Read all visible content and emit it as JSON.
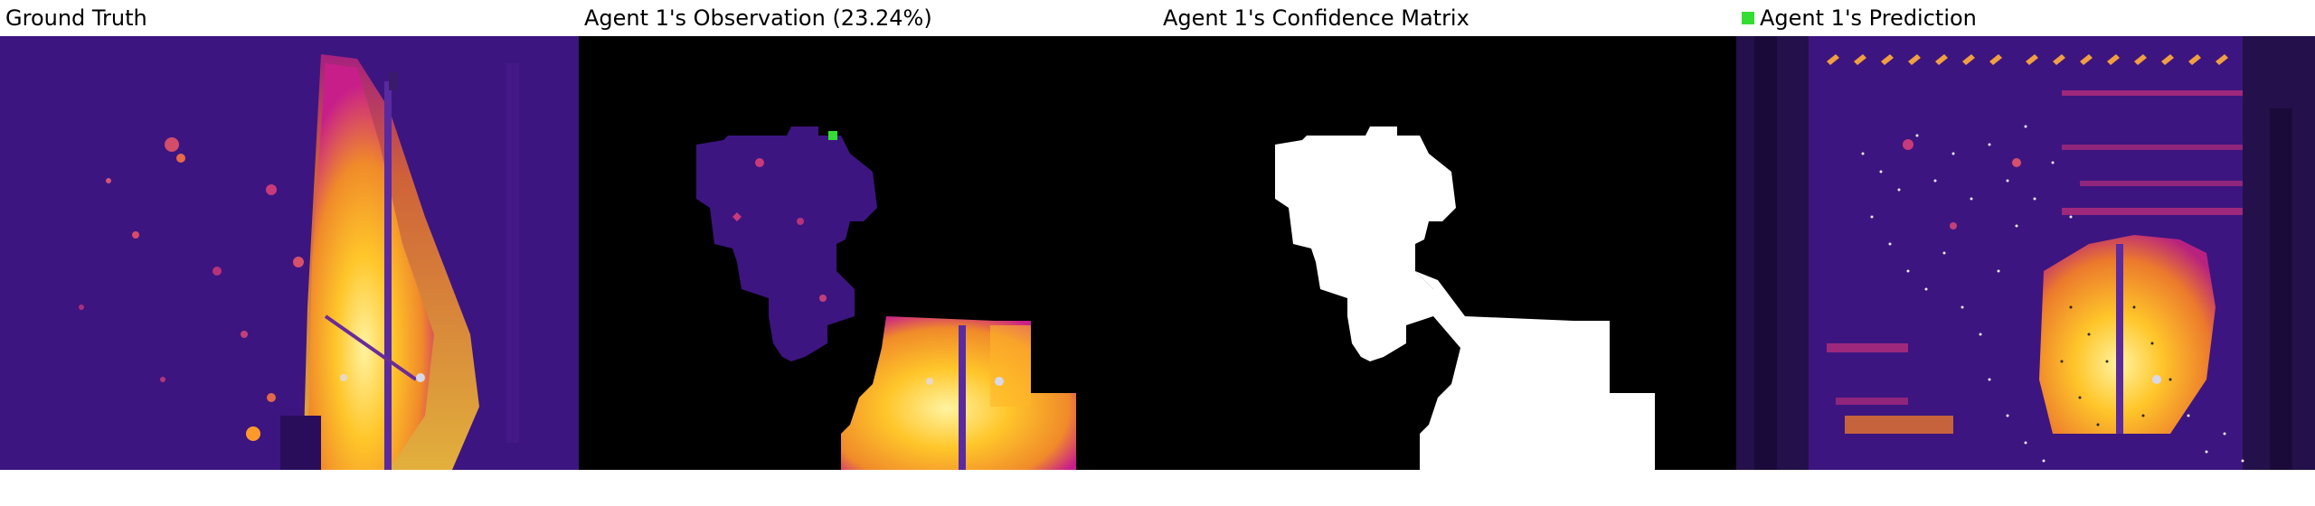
{
  "panels": [
    {
      "title": "Ground Truth"
    },
    {
      "title": "Agent 1's Observation (23.24%)"
    },
    {
      "title": "Agent 1's Confidence Matrix"
    },
    {
      "title": "Agent 1's Prediction"
    }
  ],
  "colors": {
    "background": "#ffffff",
    "mask": "#000000",
    "confidence": "#ffffff",
    "agent_marker": "#33dd33",
    "thermal_low": "#3d1580",
    "thermal_mid": "#c81e8a",
    "thermal_high": "#ffc62a",
    "thermal_peak": "#fff3a0"
  }
}
